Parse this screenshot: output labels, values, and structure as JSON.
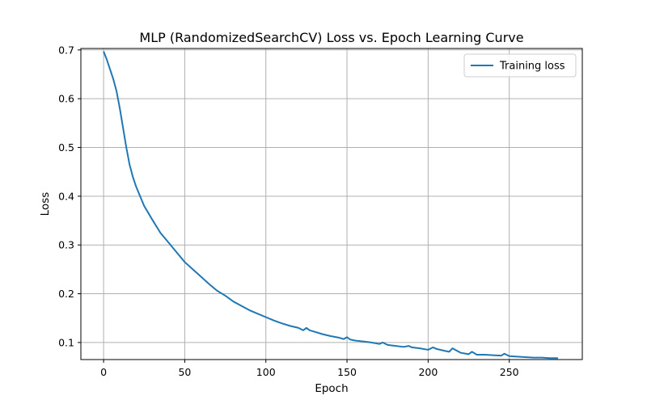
{
  "chart_data": {
    "type": "line",
    "title": "MLP (RandomizedSearchCV) Loss vs. Epoch Learning Curve",
    "xlabel": "Epoch",
    "ylabel": "Loss",
    "xlim": [
      -14,
      295
    ],
    "ylim": [
      0.065,
      0.703
    ],
    "x_ticks": [
      0,
      50,
      100,
      150,
      200,
      250
    ],
    "y_ticks": [
      0.1,
      0.2,
      0.3,
      0.4,
      0.5,
      0.6,
      0.7
    ],
    "x_tick_labels": [
      "0",
      "50",
      "100",
      "150",
      "200",
      "250"
    ],
    "y_tick_labels": [
      "0.1",
      "0.2",
      "0.3",
      "0.4",
      "0.5",
      "0.6",
      "0.7"
    ],
    "grid": true,
    "legend_position": "upper right",
    "series": [
      {
        "name": "Training loss",
        "color": "#1f77b4",
        "x": [
          0,
          2,
          4,
          6,
          8,
          10,
          12,
          14,
          16,
          18,
          20,
          25,
          30,
          35,
          40,
          45,
          50,
          55,
          60,
          65,
          70,
          75,
          80,
          85,
          90,
          95,
          100,
          105,
          110,
          115,
          120,
          123,
          125,
          127,
          130,
          135,
          140,
          145,
          148,
          150,
          152,
          155,
          160,
          165,
          170,
          172,
          175,
          180,
          185,
          188,
          190,
          195,
          200,
          203,
          205,
          210,
          213,
          215,
          220,
          225,
          227,
          230,
          235,
          240,
          245,
          247,
          250,
          255,
          260,
          265,
          270,
          275,
          280
        ],
        "y": [
          0.697,
          0.68,
          0.66,
          0.64,
          0.615,
          0.58,
          0.54,
          0.5,
          0.465,
          0.44,
          0.42,
          0.38,
          0.352,
          0.325,
          0.305,
          0.285,
          0.265,
          0.25,
          0.235,
          0.22,
          0.206,
          0.196,
          0.184,
          0.175,
          0.166,
          0.159,
          0.152,
          0.145,
          0.139,
          0.134,
          0.13,
          0.125,
          0.13,
          0.125,
          0.122,
          0.117,
          0.113,
          0.11,
          0.107,
          0.111,
          0.106,
          0.104,
          0.102,
          0.1,
          0.097,
          0.1,
          0.095,
          0.093,
          0.091,
          0.093,
          0.09,
          0.088,
          0.085,
          0.09,
          0.087,
          0.083,
          0.081,
          0.088,
          0.079,
          0.076,
          0.081,
          0.075,
          0.075,
          0.074,
          0.073,
          0.077,
          0.072,
          0.071,
          0.07,
          0.069,
          0.069,
          0.068,
          0.068
        ]
      }
    ]
  }
}
